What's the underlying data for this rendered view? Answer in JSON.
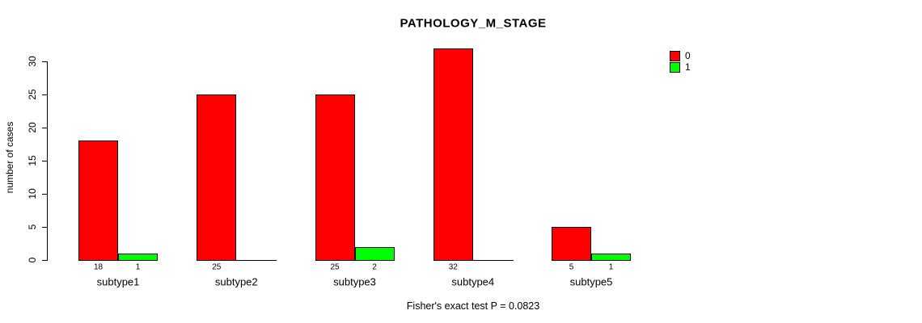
{
  "title": "PATHOLOGY_M_STAGE",
  "footer_note": "Fisher's exact test P = 0.0823",
  "colors": {
    "series0": "#FF0000",
    "series1": "#00FF00",
    "axis": "#000000",
    "background": "#FFFFFF"
  },
  "legend": {
    "position": "right",
    "items": [
      {
        "label": "0",
        "color": "#FF0000"
      },
      {
        "label": "1",
        "color": "#00FF00"
      }
    ]
  },
  "chart_data": {
    "type": "bar",
    "title": "PATHOLOGY_M_STAGE",
    "xlabel": "",
    "ylabel": "number of cases",
    "categories": [
      "subtype1",
      "subtype2",
      "subtype3",
      "subtype4",
      "subtype5"
    ],
    "series": [
      {
        "name": "0",
        "color": "#FF0000",
        "values": [
          18,
          25,
          25,
          32,
          5
        ]
      },
      {
        "name": "1",
        "color": "#00FF00",
        "values": [
          1,
          0,
          2,
          0,
          1
        ]
      }
    ],
    "bar_value_labels": [
      [
        "18",
        "1"
      ],
      [
        "25",
        ""
      ],
      [
        "25",
        "2"
      ],
      [
        "32",
        ""
      ],
      [
        "5",
        "1"
      ]
    ],
    "yticks": [
      0,
      5,
      10,
      15,
      20,
      25,
      30
    ],
    "ylim": [
      0,
      32
    ],
    "grid": false,
    "legend_position": "right",
    "annotation": "Fisher's exact test P = 0.0823"
  }
}
